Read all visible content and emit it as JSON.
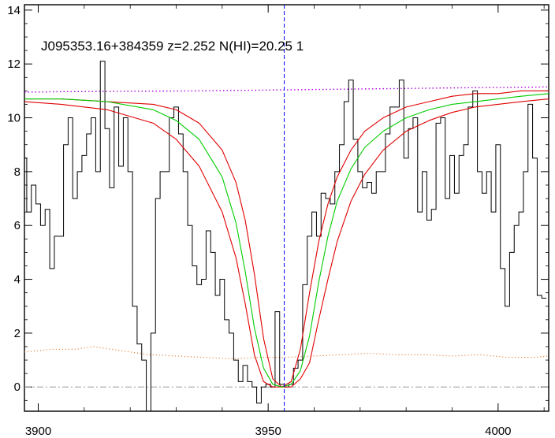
{
  "chart_data": {
    "type": "line",
    "title": "J095353.16+384359 z=2.252 N(HI)=20.25 1",
    "xlabel": "",
    "ylabel": "",
    "xlim": [
      3897,
      4011
    ],
    "ylim": [
      -0.9,
      14.2
    ],
    "x_ticks": [
      3900,
      3950,
      4000
    ],
    "x_tick_labels": [
      "3900",
      "3950",
      "4000"
    ],
    "y_ticks": [
      0,
      2,
      4,
      6,
      8,
      10,
      12,
      14
    ],
    "y_tick_labels": [
      "0",
      "2",
      "4",
      "6",
      "8",
      "10",
      "12",
      "14"
    ],
    "grid": false,
    "line_center": 3953.5,
    "continuum_start": 10.9,
    "continuum_end": 11.15,
    "colors": {
      "flux": "#000000",
      "fit": "#00cc00",
      "fit_bounds": "#e00000",
      "continuum": "#b000e0",
      "error": "#e07020",
      "zero_line": "#999999",
      "center_line": "#0000ff"
    },
    "series": [
      {
        "style": "steps",
        "x": [
          3897,
          3898,
          3899,
          3900,
          3901,
          3902,
          3903,
          3904,
          3905,
          3906,
          3907,
          3908,
          3909,
          3910,
          3911,
          3912,
          3913,
          3914,
          3915,
          3916,
          3917,
          3918,
          3919,
          3920,
          3921,
          3922,
          3923,
          3924,
          3925,
          3926,
          3927,
          3928,
          3929,
          3930,
          3931,
          3932,
          3933,
          3934,
          3935,
          3936,
          3937,
          3938,
          3939,
          3940,
          3941,
          3942,
          3943,
          3944,
          3945,
          3946,
          3947,
          3948,
          3949,
          3950,
          3951,
          3952,
          3953,
          3954,
          3955,
          3956,
          3957,
          3958,
          3959,
          3960,
          3961,
          3962,
          3963,
          3964,
          3965,
          3966,
          3967,
          3968,
          3969,
          3970,
          3971,
          3972,
          3973,
          3974,
          3975,
          3976,
          3977,
          3978,
          3979,
          3980,
          3981,
          3982,
          3983,
          3984,
          3985,
          3986,
          3987,
          3988,
          3989,
          3990,
          3991,
          3992,
          3993,
          3994,
          3995,
          3996,
          3997,
          3998,
          3999,
          4000,
          4001,
          4002,
          4003,
          4004,
          4005,
          4006,
          4007,
          4008,
          4009,
          4010
        ],
        "y": [
          8.5,
          6.5,
          7.5,
          6.8,
          6.0,
          6.6,
          4.4,
          5.6,
          5.6,
          9.0,
          10.0,
          7.0,
          8.0,
          8.6,
          9.4,
          10.0,
          8.0,
          12.1,
          9.6,
          7.4,
          10.4,
          8.2,
          10.0,
          8.0,
          3.0,
          1.6,
          1.0,
          -1.0,
          2.0,
          7.0,
          8.0,
          8.0,
          10.0,
          10.4,
          9.4,
          8.0,
          6.0,
          4.5,
          3.8,
          4.0,
          5.8,
          5.0,
          3.4,
          4.0,
          2.5,
          2.0,
          1.0,
          0.2,
          0.8,
          0.2,
          0.0,
          -0.6,
          0.0,
          0.1,
          0.0,
          2.8,
          0.1,
          0.0,
          0.1,
          0.7,
          1.0,
          3.8,
          5.6,
          6.5,
          5.6,
          7.2,
          7.0,
          6.8,
          8.0,
          9.0,
          10.6,
          11.4,
          9.2,
          8.0,
          7.4,
          7.6,
          7.2,
          8.0,
          8.0,
          9.4,
          10.4,
          10.4,
          11.4,
          8.5,
          9.6,
          10.0,
          6.5,
          8.0,
          6.2,
          6.6,
          9.8,
          10.0,
          7.0,
          8.6,
          7.2,
          8.6,
          9.0,
          10.4,
          11.0,
          8.0,
          7.2,
          8.0,
          6.5,
          9.0,
          4.4,
          3.0,
          5.0,
          6.0,
          6.5,
          8.0,
          10.5,
          8.5,
          3.4,
          3.3
        ]
      },
      {
        "style": "smooth",
        "x": [
          3897,
          3905,
          3915,
          3925,
          3930,
          3935,
          3940,
          3943,
          3945,
          3947,
          3949,
          3951,
          3953,
          3955,
          3957,
          3959,
          3961,
          3963,
          3965,
          3968,
          3971,
          3975,
          3980,
          3985,
          3990,
          3995,
          4000,
          4005,
          4011
        ],
        "y": [
          10.7,
          10.7,
          10.6,
          10.3,
          9.9,
          9.2,
          7.8,
          6.1,
          4.3,
          2.2,
          0.7,
          0.1,
          0.0,
          0.1,
          0.6,
          1.9,
          3.9,
          5.6,
          6.9,
          8.1,
          8.9,
          9.5,
          10.0,
          10.3,
          10.5,
          10.6,
          10.7,
          10.8,
          10.9
        ]
      },
      {
        "style": "smooth",
        "x": [
          3897,
          3905,
          3915,
          3925,
          3930,
          3935,
          3940,
          3943,
          3945,
          3947,
          3949,
          3951,
          3953,
          3955,
          3957,
          3959,
          3961,
          3963,
          3965,
          3968,
          3971,
          3975,
          3980,
          3985,
          3990,
          3995,
          4000,
          4005,
          4011
        ],
        "y": [
          10.7,
          10.7,
          10.6,
          10.5,
          10.3,
          9.8,
          8.8,
          7.6,
          6.2,
          4.2,
          1.8,
          0.3,
          0.0,
          0.2,
          1.4,
          3.5,
          5.4,
          6.8,
          7.8,
          8.8,
          9.5,
          10.0,
          10.4,
          10.6,
          10.8,
          10.9,
          10.9,
          11.0,
          11.0
        ]
      },
      {
        "style": "smooth",
        "x": [
          3897,
          3905,
          3915,
          3925,
          3930,
          3935,
          3940,
          3943,
          3945,
          3947,
          3949,
          3951,
          3953,
          3955,
          3957,
          3959,
          3961,
          3963,
          3965,
          3968,
          3971,
          3975,
          3980,
          3985,
          3990,
          3995,
          4000,
          4005,
          4011
        ],
        "y": [
          10.6,
          10.5,
          10.3,
          9.8,
          9.2,
          8.2,
          6.5,
          4.8,
          3.1,
          1.2,
          0.2,
          0.0,
          0.0,
          0.0,
          0.3,
          0.9,
          2.5,
          4.0,
          5.4,
          6.9,
          7.9,
          8.8,
          9.5,
          9.9,
          10.2,
          10.4,
          10.5,
          10.6,
          10.7
        ]
      },
      {
        "style": "dotted",
        "x": [
          3897,
          3905,
          3915,
          3925,
          3935,
          3945,
          3955,
          3965,
          3975,
          3985,
          3995,
          4005,
          4011
        ],
        "y": [
          10.95,
          10.97,
          10.98,
          10.99,
          11.0,
          11.02,
          11.04,
          11.06,
          11.08,
          11.1,
          11.12,
          11.13,
          11.15
        ]
      },
      {
        "style": "dotted",
        "x": [
          3897,
          3903,
          3908,
          3912,
          3916,
          3920,
          3924,
          3930,
          3936,
          3942,
          3948,
          3954,
          3960,
          3966,
          3972,
          3978,
          3984,
          3990,
          3996,
          4002,
          4008,
          4011
        ],
        "y": [
          1.3,
          1.4,
          1.4,
          1.5,
          1.4,
          1.3,
          1.2,
          1.15,
          1.1,
          1.05,
          1.1,
          1.1,
          1.15,
          1.2,
          1.25,
          1.2,
          1.2,
          1.15,
          1.2,
          1.1,
          1.1,
          1.15
        ]
      }
    ]
  }
}
